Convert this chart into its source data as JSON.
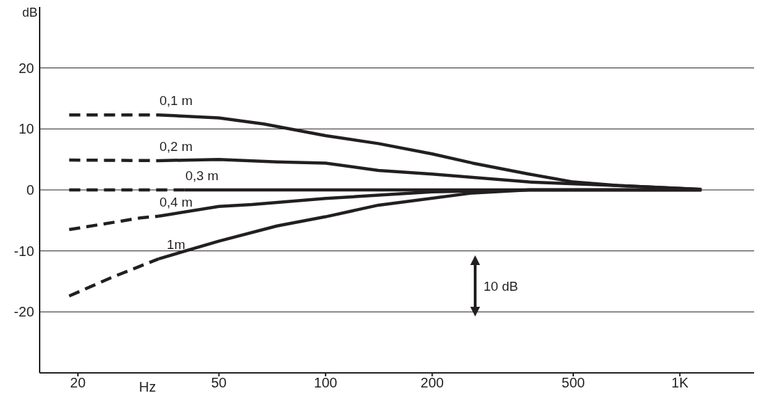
{
  "chart_data": {
    "type": "line",
    "ylabel": "dB",
    "xlabel": "Hz",
    "log": "x",
    "grid": "y",
    "marker": "none",
    "legend": false,
    "xlim": [
      15.6,
      1620
    ],
    "xticks": [
      20,
      50,
      100,
      200,
      500,
      {
        "value": 1000,
        "label": "1K"
      }
    ],
    "ylim": [
      -30,
      30
    ],
    "yticks": [
      -20,
      -10,
      0,
      10,
      20
    ],
    "series": [
      {
        "color": "#231f20",
        "line_style": "dashed",
        "x": [
          18.9,
          33.8
        ],
        "values": [
          12.3,
          12.3
        ]
      },
      {
        "name": "0,1 m",
        "color": "#231f20",
        "line_style": "solid",
        "x": [
          33.8,
          50,
          67,
          100,
          141,
          200,
          260,
          375,
          500,
          670,
          1150
        ],
        "values": [
          12.3,
          11.8,
          10.8,
          8.9,
          7.6,
          5.9,
          4.4,
          2.6,
          1.3,
          0.7,
          0.1
        ]
      },
      {
        "color": "#231f20",
        "line_style": "dashed",
        "x": [
          18.9,
          33.8
        ],
        "values": [
          4.9,
          4.8
        ]
      },
      {
        "name": "0,2 m",
        "color": "#231f20",
        "line_style": "solid",
        "x": [
          33.8,
          50,
          73,
          100,
          141,
          200,
          375,
          670,
          1150
        ],
        "values": [
          4.8,
          5.0,
          4.6,
          4.4,
          3.2,
          2.6,
          1.3,
          0.7,
          0.1
        ]
      },
      {
        "color": "#231f20",
        "line_style": "dashed",
        "x": [
          18.9,
          40
        ],
        "values": [
          0,
          0
        ]
      },
      {
        "name": "0,3 m",
        "color": "#231f20",
        "line_style": "solid",
        "x": [
          40,
          1150
        ],
        "values": [
          0,
          0
        ]
      },
      {
        "color": "#231f20",
        "line_style": "dashed",
        "x": [
          18.9,
          30,
          33.8
        ],
        "values": [
          -6.5,
          -4.6,
          -4.3
        ]
      },
      {
        "name": "0,4 m",
        "color": "#231f20",
        "line_style": "solid",
        "x": [
          33.8,
          50,
          62,
          100,
          200,
          375,
          1150
        ],
        "values": [
          -4.3,
          -2.7,
          -2.4,
          -1.4,
          -0.3,
          0,
          0
        ]
      },
      {
        "color": "#231f20",
        "line_style": "dashed",
        "x": [
          18.9,
          24.8,
          33.8
        ],
        "values": [
          -17.4,
          -14.4,
          -11.3
        ]
      },
      {
        "name": "1m",
        "color": "#231f20",
        "line_style": "solid",
        "x": [
          33.8,
          50,
          73,
          100,
          141,
          165,
          260,
          375,
          1150
        ],
        "values": [
          -11.3,
          -8.4,
          -5.9,
          -4.4,
          -2.5,
          -2.0,
          -0.5,
          0,
          0
        ]
      }
    ],
    "annotations": [
      "10 dB"
    ]
  }
}
